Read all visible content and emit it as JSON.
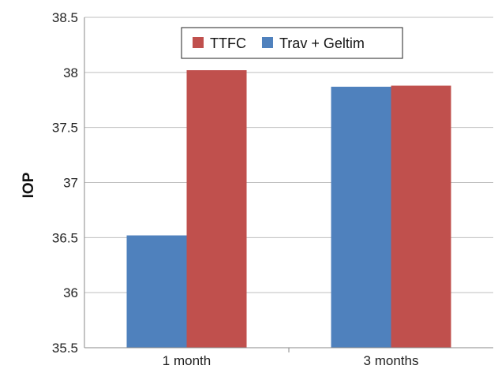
{
  "chart_data": {
    "type": "bar",
    "categories": [
      "1 month",
      "3 months"
    ],
    "series": [
      {
        "name": "Trav + Geltim",
        "color": "#4F81BD",
        "values": [
          36.52,
          37.87
        ]
      },
      {
        "name": "TTFC",
        "color": "#C0504D",
        "values": [
          38.02,
          37.88
        ]
      }
    ],
    "legend_order": [
      "TTFC",
      "Trav + Geltim"
    ],
    "title": "",
    "xlabel": "",
    "ylabel": "IOP",
    "ylim": [
      35.5,
      38.5
    ],
    "yticks": [
      "35.5",
      "36",
      "36.5",
      "37",
      "37.5",
      "38",
      "38.5"
    ],
    "grid": true,
    "legend_position": "top-center"
  }
}
